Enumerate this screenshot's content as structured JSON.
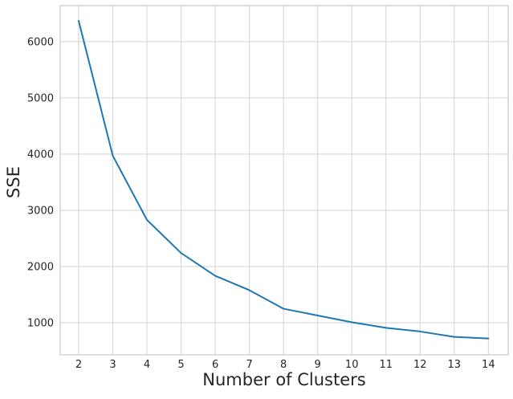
{
  "figure": {
    "background": "#ffffff"
  },
  "chart_data": {
    "type": "line",
    "title": "",
    "xlabel": "Number of Clusters",
    "ylabel": "SSE",
    "x": [
      2,
      3,
      4,
      5,
      6,
      7,
      8,
      9,
      10,
      11,
      12,
      13,
      14
    ],
    "y": [
      6370,
      3970,
      2830,
      2240,
      1835,
      1580,
      1250,
      1130,
      1010,
      910,
      845,
      750,
      720
    ],
    "xticks": [
      "2",
      "3",
      "4",
      "5",
      "6",
      "7",
      "8",
      "9",
      "10",
      "11",
      "12",
      "13",
      "14"
    ],
    "xtick_values": [
      2,
      3,
      4,
      5,
      6,
      7,
      8,
      9,
      10,
      11,
      12,
      13,
      14
    ],
    "yticks": [
      "1000",
      "2000",
      "3000",
      "4000",
      "5000",
      "6000"
    ],
    "ytick_values": [
      1000,
      2000,
      3000,
      4000,
      5000,
      6000
    ],
    "xlim": [
      1.46,
      14.58
    ],
    "ylim": [
      430,
      6640
    ],
    "grid": true,
    "legend": null,
    "line_color": "#1f77b4",
    "grid_color": "#d7d7d7",
    "spine_color": "#cccccc",
    "text_color": "#262626"
  }
}
